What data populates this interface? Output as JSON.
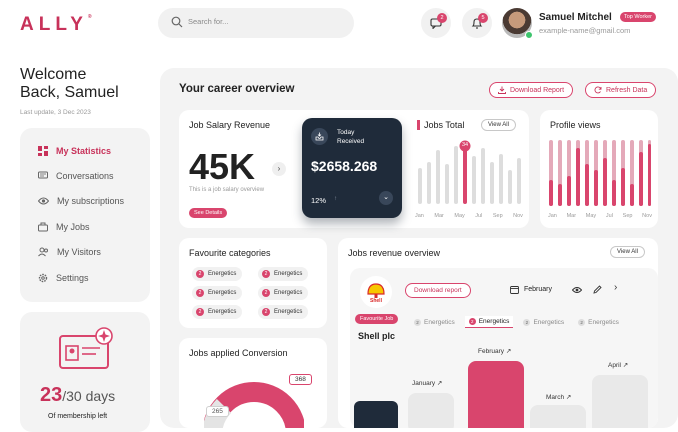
{
  "brand": {
    "logo": "ALLY",
    "mark": "®"
  },
  "search": {
    "placeholder": "Search for..."
  },
  "header": {
    "messages_count": "2",
    "notifications_count": "5",
    "user_name": "Samuel Mitchel",
    "user_badge": "Top Worker",
    "user_email": "example-name@gmail.com"
  },
  "welcome": {
    "line1": "Welcome",
    "line2": "Back, Samuel",
    "last_update": "Last update, 3 Dec 2023"
  },
  "sidebar": {
    "items": [
      {
        "label": "My Statistics",
        "icon": "grid-icon"
      },
      {
        "label": "Conversations",
        "icon": "chat-icon"
      },
      {
        "label": "My subscriptions",
        "icon": "eye-icon"
      },
      {
        "label": "My Jobs",
        "icon": "briefcase-icon"
      },
      {
        "label": "My Visitors",
        "icon": "users-icon"
      },
      {
        "label": "Settings",
        "icon": "gear-icon"
      }
    ]
  },
  "membership": {
    "days_left": "23",
    "days_total": "/30 days",
    "label": "Of membership left"
  },
  "overview": {
    "title": "Your career overview",
    "download_label": "Download Report",
    "refresh_label": "Refresh Data"
  },
  "salary": {
    "title": "Job Salary Revenue",
    "value": "45K",
    "caption": "This is a job salary overview",
    "details_label": "See Details"
  },
  "today": {
    "label_line1": "Today",
    "label_line2": "Received",
    "amount": "$2658.268",
    "percent": "12%"
  },
  "jobs_total": {
    "title": "Jobs Total",
    "view_all": "View All",
    "badge": "34",
    "months": [
      "Jan",
      "Mar",
      "May",
      "Jul",
      "Sep",
      "Nov"
    ]
  },
  "profile_views": {
    "title": "Profile views",
    "months": [
      "Jan",
      "Mar",
      "May",
      "Jul",
      "Sep",
      "Nov"
    ]
  },
  "favourites": {
    "title": "Favourite categories",
    "chips": [
      {
        "n": "2",
        "label": "Energetics"
      },
      {
        "n": "2",
        "label": "Energetics"
      },
      {
        "n": "2",
        "label": "Energetics"
      },
      {
        "n": "2",
        "label": "Energetics"
      },
      {
        "n": "2",
        "label": "Energetics"
      },
      {
        "n": "2",
        "label": "Energetics"
      }
    ]
  },
  "conversion": {
    "title": "Jobs applied Conversion",
    "value_a": "368",
    "value_b": "265"
  },
  "revenue": {
    "title": "Jobs revenue overview",
    "view_all": "View All",
    "company_logo_text": "Shell",
    "download_label": "Download report",
    "month_label": "February",
    "fav_tag": "Favourite Job",
    "company": "Shell plc",
    "tabs": [
      {
        "n": "2",
        "label": "Energetics"
      },
      {
        "n": "2",
        "label": "Energetics"
      },
      {
        "n": "2",
        "label": "Energetics"
      },
      {
        "n": "2",
        "label": "Energetics"
      }
    ],
    "bar_labels": {
      "feb": "February ↗",
      "jan": "January ↗",
      "mar": "March ↗",
      "apr": "April ↗"
    }
  },
  "colors": {
    "accent": "#d9456d",
    "dark_card": "#1f2b3a",
    "panel": "#f3f3f3"
  }
}
